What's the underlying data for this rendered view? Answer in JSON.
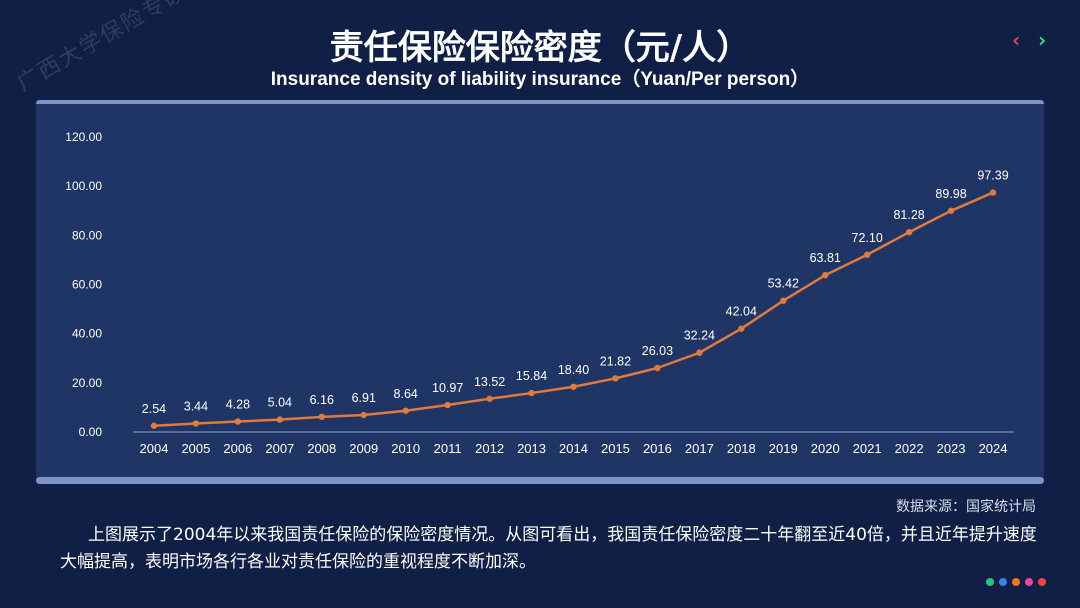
{
  "slide": {
    "title": "责任保险保险密度（元/人）",
    "subtitle": "Insurance density of liability insurance（Yuan/Per person）",
    "watermark": "广西大学保险专硕",
    "nav_prev": "‹",
    "nav_next": "›",
    "source": "数据来源：国家统计局",
    "description": "上图展示了2004年以来我国责任保险的保险密度情况。从图可看出，我国责任保险密度二十年翻至近40倍，并且近年提升速度大幅提高，表明市场各行各业对责任保险的重视程度不断加深。",
    "dot_colors": [
      "#2ec27e",
      "#3b82f6",
      "#f97316",
      "#ec4899",
      "#ef4444"
    ]
  },
  "chart_data": {
    "type": "line",
    "title": "责任保险保险密度（元/人）",
    "xlabel": "",
    "ylabel": "",
    "categories": [
      "2004",
      "2005",
      "2006",
      "2007",
      "2008",
      "2009",
      "2010",
      "2011",
      "2012",
      "2013",
      "2014",
      "2015",
      "2016",
      "2017",
      "2018",
      "2019",
      "2020",
      "2021",
      "2022",
      "2023",
      "2024"
    ],
    "series": [
      {
        "name": "Insurance density",
        "values": [
          2.54,
          3.44,
          4.28,
          5.04,
          6.16,
          6.91,
          8.64,
          10.97,
          13.52,
          15.84,
          18.4,
          21.82,
          26.03,
          32.24,
          42.04,
          53.42,
          63.81,
          72.1,
          81.28,
          89.98,
          97.39
        ],
        "color": "#e07b39"
      }
    ],
    "ylim": [
      0,
      120
    ],
    "yticks": [
      0,
      20,
      40,
      60,
      80,
      100,
      120
    ],
    "grid": false,
    "legend": "none"
  }
}
